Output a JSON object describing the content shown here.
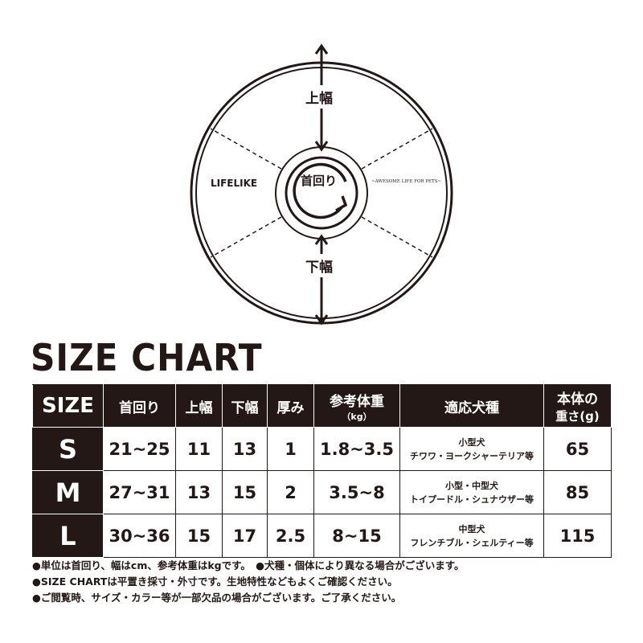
{
  "diagram": {
    "upper_width": "上幅",
    "lower_width": "下幅",
    "neck": "首回り",
    "brand": "LIFELIKE",
    "tagline": "~AWESOME LIFE FOR PETS~"
  },
  "title": "SIZE CHART",
  "table": {
    "headers": [
      {
        "label": "SIZE"
      },
      {
        "label": "首回り"
      },
      {
        "label": "上幅"
      },
      {
        "label": "下幅"
      },
      {
        "label": "厚み"
      },
      {
        "label": "参考体重",
        "sub": "（kg）"
      },
      {
        "label": "適応犬種"
      },
      {
        "label": "本体の",
        "sub": "重さ(g)"
      }
    ],
    "rows": [
      {
        "size": "S",
        "neck": "21~25",
        "upper": "11",
        "lower": "13",
        "thickness": "1",
        "weight": "1.8~3.5",
        "breed_type": "小型犬",
        "breeds": "チワワ・ヨークシャーテリア等",
        "item_weight": "65"
      },
      {
        "size": "M",
        "neck": "27~31",
        "upper": "13",
        "lower": "15",
        "thickness": "2",
        "weight": "3.5~8",
        "breed_type": "小型・中型犬",
        "breeds": "トイプードル・シュナウザー等",
        "item_weight": "85"
      },
      {
        "size": "L",
        "neck": "30~36",
        "upper": "15",
        "lower": "17",
        "thickness": "2.5",
        "weight": "8~15",
        "breed_type": "中型犬",
        "breeds": "フレンチブル・シェルティー等",
        "item_weight": "115"
      }
    ]
  },
  "notes": [
    "●単位は首回り、幅はcm、参考体重はkgです。　●犬種・個体により異なる場合がございます。",
    "●SIZE CHARTは平置き採寸・外寸です。生地特性などもよくご確認ください。",
    "●ご閲覧時、サイズ・カラー等が一部欠品の場合がございます。ご了承ください。"
  ]
}
